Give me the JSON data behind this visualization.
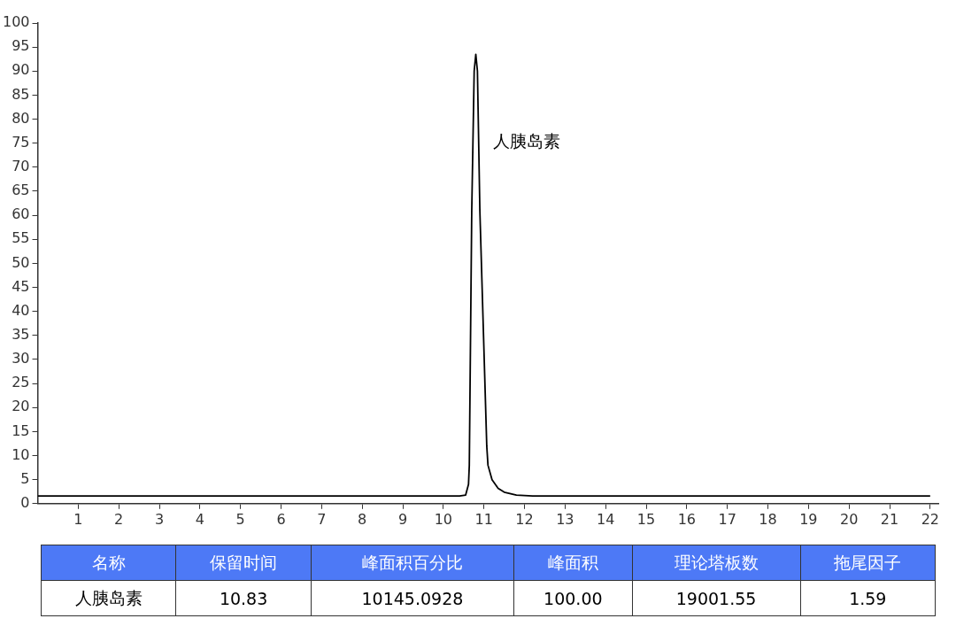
{
  "chart_data": {
    "type": "line",
    "x": [
      0,
      10.4,
      10.55,
      10.62,
      10.64,
      10.7,
      10.76,
      10.8,
      10.84,
      10.9,
      11.07,
      11.1,
      11.2,
      11.35,
      11.5,
      11.8,
      12.2,
      22
    ],
    "series": [
      {
        "color": "#000000",
        "values": [
          1.6,
          1.6,
          1.8,
          4,
          8,
          61,
          90,
          93.5,
          90,
          61,
          12,
          8,
          5,
          3.2,
          2.4,
          1.8,
          1.6,
          1.6
        ]
      }
    ],
    "xlim": [
      0,
      22.2
    ],
    "xticks": [
      1,
      2,
      3,
      4,
      5,
      6,
      7,
      8,
      9,
      10,
      11,
      12,
      13,
      14,
      15,
      16,
      17,
      18,
      19,
      20,
      21,
      22
    ],
    "ylim": [
      0,
      100
    ],
    "yticks": [
      0,
      5,
      10,
      15,
      20,
      25,
      30,
      35,
      40,
      45,
      50,
      55,
      60,
      65,
      70,
      75,
      80,
      85,
      90,
      95,
      100
    ],
    "grid": false,
    "legend": false,
    "marker": "none",
    "line_style": "solid",
    "annotations": [
      "人胰岛素",
      "名称",
      "保留时间",
      "峰面积百分比",
      "峰面积",
      "理论塔板数",
      "拖尾因子",
      "人胰岛素",
      "10.83",
      "10145.0928",
      "100.00",
      "19001.55",
      "1.59"
    ]
  }
}
